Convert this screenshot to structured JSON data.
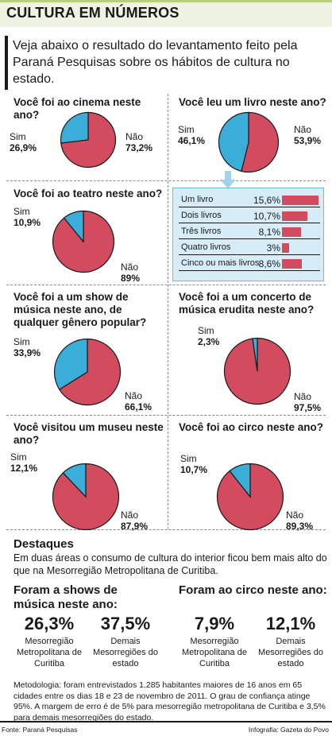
{
  "header": {
    "title": "CULTURA EM NÚMEROS"
  },
  "intro": "Veja abaixo o resultado do levantamento feito pela Paraná Pesquisas sobre os hábitos de cultura no estado.",
  "colors": {
    "sim": "#3aaed8",
    "nao": "#d24b5e",
    "outline": "#1a1a1a",
    "detail_bg": "#d6ecf6",
    "header_bg": "#eef3e3"
  },
  "chart_data": [
    {
      "type": "pie",
      "title": "Você foi ao cinema neste ano?",
      "slices": [
        {
          "label": "Sim",
          "value": 26.9,
          "text": "26,9%"
        },
        {
          "label": "Não",
          "value": 73.2,
          "text": "73,2%"
        }
      ]
    },
    {
      "type": "pie",
      "title": "Você leu um livro neste ano?",
      "slices": [
        {
          "label": "Sim",
          "value": 46.1,
          "text": "46,1%"
        },
        {
          "label": "Não",
          "value": 53.9,
          "text": "53,9%"
        }
      ]
    },
    {
      "type": "pie",
      "title": "Você foi ao teatro neste ano?",
      "slices": [
        {
          "label": "Sim",
          "value": 10.9,
          "text": "10,9%"
        },
        {
          "label": "Não",
          "value": 89,
          "text": "89%"
        }
      ]
    },
    {
      "type": "pie",
      "title": "Você foi a um show de música neste ano, de qualquer gênero popular?",
      "slices": [
        {
          "label": "Sim",
          "value": 33.9,
          "text": "33,9%"
        },
        {
          "label": "Não",
          "value": 66.1,
          "text": "66,1%"
        }
      ]
    },
    {
      "type": "pie",
      "title": "Você foi a um concerto de música erudita neste ano?",
      "slices": [
        {
          "label": "Sim",
          "value": 2.3,
          "text": "2,3%"
        },
        {
          "label": "Não",
          "value": 97.5,
          "text": "97,5%"
        }
      ]
    },
    {
      "type": "pie",
      "title": "Você visitou um museu neste ano?",
      "slices": [
        {
          "label": "Sim",
          "value": 12.1,
          "text": "12,1%"
        },
        {
          "label": "Não",
          "value": 87.9,
          "text": "87,9%"
        }
      ]
    },
    {
      "type": "pie",
      "title": "Você foi ao circo neste ano?",
      "slices": [
        {
          "label": "Sim",
          "value": 10.7,
          "text": "10,7%"
        },
        {
          "label": "Não",
          "value": 89.3,
          "text": "89,3%"
        }
      ]
    },
    {
      "type": "bar",
      "categories": [
        "Um livro",
        "Dois livros",
        "Três livros",
        "Quatro livros",
        "Cinco ou mais livros"
      ],
      "values": [
        15.6,
        10.7,
        8.1,
        3,
        8.6
      ],
      "value_labels": [
        "15,6%",
        "10,7%",
        "8,1%",
        "3%",
        "8,6%"
      ]
    }
  ],
  "destaques": {
    "title": "Destaques",
    "text": "Em duas áreas o consumo de cultura do interior ficou bem mais alto do que na Mesorregião Metropolitana de Curitiba.",
    "shows": {
      "title": "Foram a shows de música neste ano:",
      "stat1": {
        "value": "26,3%",
        "caption": "Mesorregião Metropolitana de Curitiba"
      },
      "stat2": {
        "value": "37,5%",
        "caption": "Demais Mesorregiões do estado"
      }
    },
    "circo": {
      "title": "Foram ao circo neste ano:",
      "stat1": {
        "value": "7,9%",
        "caption": "Mesorregião Metropolitana de Curitiba"
      },
      "stat2": {
        "value": "12,1%",
        "caption": "Demais Mesorregiões do estado"
      }
    }
  },
  "metodologia": "Metodologia: foram entrevistados 1.285 habitantes maiores de 16 anos em 65 cidades entre os dias 18 e 23 de novembro de 2011. O grau de confiança atinge 95%. A margem de erro é de 5% para mesorregião metropolitana de Curitiba e 3,5% para demais mesorregiões do estado.",
  "footer": {
    "source": "Fonte: Paraná Pesquisas",
    "credit": "Infografia: Gazeta do Povo"
  }
}
